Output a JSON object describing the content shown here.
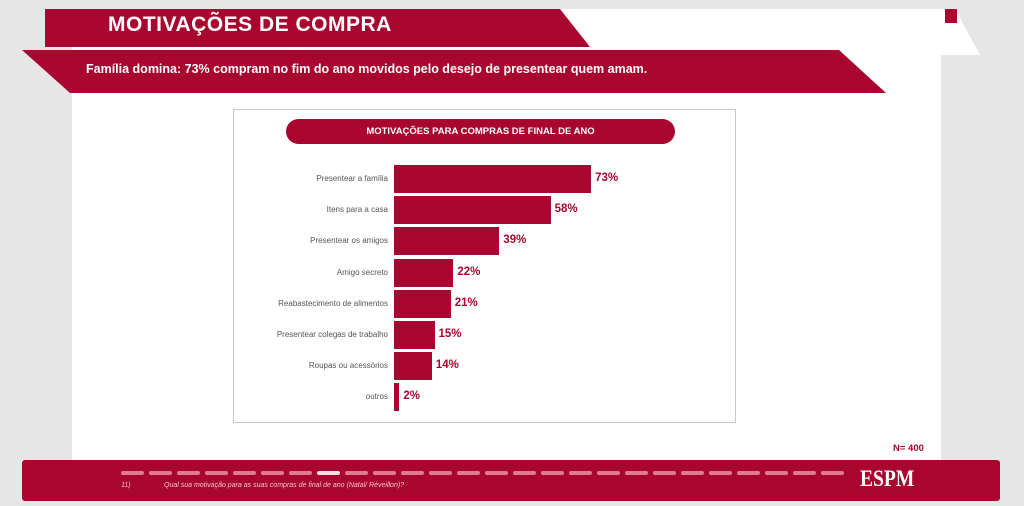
{
  "header": {
    "title": "MOTIVAÇÕES DE COMPRA",
    "subtitle": "Família domina: 73% compram no fim do ano movidos pelo desejo de presentear quem amam."
  },
  "chart_data": {
    "type": "bar",
    "orientation": "horizontal",
    "title": "MOTIVAÇÕES PARA COMPRAS DE FINAL DE ANO",
    "categories": [
      "Presentear a família",
      "Itens para a casa",
      "Presentear os amigos",
      "Amigo secreto",
      "Reabastecimento de alimentos",
      "Presentear colegas de trabalho",
      "Roupas ou acessórios",
      "outros"
    ],
    "values": [
      73,
      58,
      39,
      22,
      21,
      15,
      14,
      2
    ],
    "value_labels": [
      "73%",
      "58%",
      "39%",
      "22%",
      "21%",
      "15%",
      "14%",
      "2%"
    ],
    "unit": "%",
    "color": "#a8062e"
  },
  "sample": "N= 400",
  "footer": {
    "question_number": "11)",
    "question": "Qual sua motivação para as suas compras de final de ano (Natal/ Réveillon)?",
    "logo": "ESPM",
    "progress": {
      "total": 26,
      "current": 8
    }
  }
}
